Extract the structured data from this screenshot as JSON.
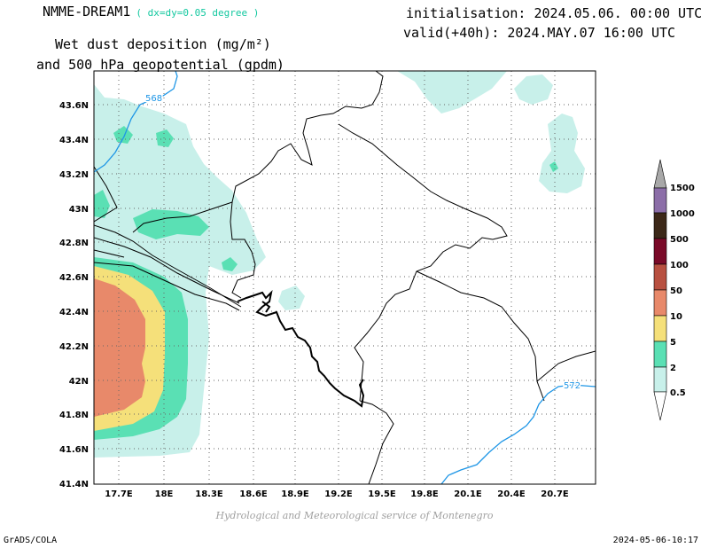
{
  "header": {
    "model": "NMME-DREAM1",
    "resolution": "( dx=dy=0.05 degree )",
    "product_line1": "Wet dust deposition (mg/m²)",
    "product_line2": "and 500 hPa geopotential (gpdm)",
    "initialisation": "initialisation: 2024.05.06. 00:00 UTC",
    "valid": "valid(+40h): 2024.MAY.07 16:00 UTC"
  },
  "map": {
    "lat_labels": [
      "43.6N",
      "43.4N",
      "43.2N",
      "43N",
      "42.8N",
      "42.6N",
      "42.4N",
      "42.2N",
      "42N",
      "41.8N",
      "41.6N",
      "41.4N"
    ],
    "lon_labels": [
      "17.7E",
      "18E",
      "18.3E",
      "18.6E",
      "18.9E",
      "19.2E",
      "19.5E",
      "19.8E",
      "20.1E",
      "20.4E",
      "20.7E"
    ],
    "contour_labels": [
      "568",
      "572"
    ],
    "contour_color": "#1e96e6",
    "border_color": "#000000"
  },
  "legend": {
    "levels": [
      "1500",
      "1000",
      "500",
      "100",
      "50",
      "10",
      "5",
      "2",
      "0.5"
    ],
    "colors": {
      "c0_5": "#c8f0ea",
      "c2": "#5ae0b4",
      "c5": "#f5e07a",
      "c10": "#e8896a",
      "c50": "#b85040",
      "c100": "#7a0a28",
      "c500": "#3c2818",
      "c1000": "#8c6ea8",
      "c1500": "#a8a8a8"
    }
  },
  "footer": {
    "credit": "Hydrological and Meteorological service of Montenegro",
    "software": "GrADS/COLA",
    "timestamp": "2024-05-06-10:17"
  }
}
